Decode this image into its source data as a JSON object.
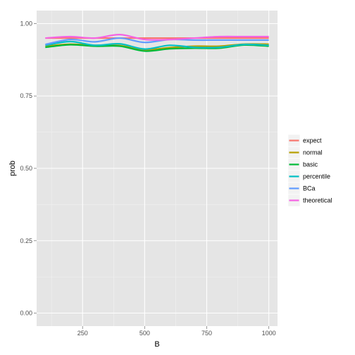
{
  "chart_data": {
    "type": "line",
    "xlabel": "B",
    "ylabel": "prob",
    "xlim": [
      65,
      1035
    ],
    "ylim": [
      -0.045,
      1.045
    ],
    "x_ticks": [
      250,
      500,
      750,
      1000
    ],
    "x_tick_labels": [
      "250",
      "500",
      "750",
      "1000"
    ],
    "y_ticks": [
      0.0,
      0.25,
      0.5,
      0.75,
      1.0
    ],
    "y_tick_labels": [
      "0.00",
      "0.25",
      "0.50",
      "0.75",
      "1.00"
    ],
    "grid": true,
    "legend_position": "right",
    "x": [
      100,
      200,
      300,
      400,
      500,
      600,
      700,
      800,
      900,
      1000
    ],
    "series": [
      {
        "name": "expect",
        "color": "#F8766D",
        "values": [
          0.95,
          0.95,
          0.95,
          0.95,
          0.95,
          0.95,
          0.95,
          0.95,
          0.95,
          0.95
        ]
      },
      {
        "name": "normal",
        "color": "#B79F00",
        "values": [
          0.922,
          0.929,
          0.925,
          0.924,
          0.91,
          0.917,
          0.922,
          0.922,
          0.929,
          0.929
        ]
      },
      {
        "name": "basic",
        "color": "#00BA38",
        "values": [
          0.918,
          0.927,
          0.922,
          0.922,
          0.905,
          0.913,
          0.915,
          0.915,
          0.926,
          0.922
        ]
      },
      {
        "name": "percentile",
        "color": "#00BFC4",
        "values": [
          0.925,
          0.938,
          0.925,
          0.93,
          0.912,
          0.925,
          0.918,
          0.918,
          0.928,
          0.925
        ]
      },
      {
        "name": "BCa",
        "color": "#619CFF",
        "values": [
          0.928,
          0.945,
          0.937,
          0.95,
          0.935,
          0.945,
          0.943,
          0.943,
          0.943,
          0.943
        ]
      },
      {
        "name": "theoretical",
        "color": "#F564E3",
        "values": [
          0.95,
          0.955,
          0.95,
          0.962,
          0.945,
          0.945,
          0.95,
          0.955,
          0.955,
          0.955
        ]
      }
    ]
  }
}
